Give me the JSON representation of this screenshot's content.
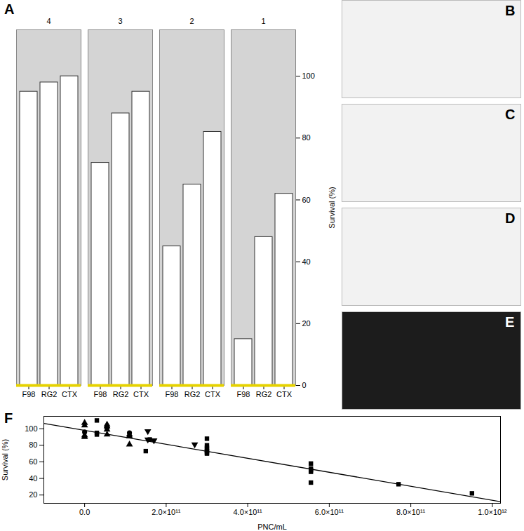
{
  "chart_data": [
    {
      "type": "bar",
      "title": "A",
      "categories": [
        "4",
        "3",
        "2",
        "1"
      ],
      "series": [
        {
          "name": "F98",
          "color": "#ffffff",
          "values": [
            95,
            72,
            45,
            15
          ]
        },
        {
          "name": "RG2",
          "color": "#ffffff",
          "values": [
            98,
            88,
            65,
            48
          ]
        },
        {
          "name": "CTX",
          "color": "#ffffff",
          "values": [
            100,
            95,
            82,
            62
          ]
        }
      ],
      "ylabel": "Survival (%)",
      "ylim": [
        0,
        115
      ],
      "yticks": [
        0,
        20,
        40,
        60,
        80,
        100
      ],
      "grid": true
    },
    {
      "type": "scatter",
      "title": "F",
      "xlabel": "PNC/mL",
      "ylabel": "Survival (%)",
      "xlim": [
        -100000000000.0,
        1020000000000.0
      ],
      "xticks": [
        {
          "value": 0,
          "label": "0.0"
        },
        {
          "value": 200000000000.0,
          "label": "2.0×10¹¹"
        },
        {
          "value": 400000000000.0,
          "label": "4.0×10¹¹"
        },
        {
          "value": 600000000000.0,
          "label": "6.0×10¹¹"
        },
        {
          "value": 800000000000.0,
          "label": "8.0×10¹¹"
        },
        {
          "value": 1000000000000.0,
          "label": "1.0×10¹²"
        }
      ],
      "ylim": [
        10,
        115
      ],
      "yticks": [
        20,
        40,
        60,
        80,
        100
      ],
      "series": [
        {
          "marker": "square",
          "color": "#000000",
          "x": [
            30000000000.0,
            30000000000.0,
            30000000000.0,
            150000000000.0,
            160000000000.0,
            300000000000.0,
            300000000000.0,
            300000000000.0,
            300000000000.0,
            300000000000.0,
            300000000000.0,
            300000000000.0,
            555000000000.0,
            555000000000.0,
            555000000000.0,
            555000000000.0,
            555000000000.0,
            770000000000.0,
            950000000000.0
          ],
          "values": [
            110,
            95,
            93,
            73,
            87,
            88,
            80,
            77,
            75,
            73,
            71,
            70,
            58,
            52,
            50,
            48,
            35,
            33,
            22
          ]
        },
        {
          "marker": "triangle-up",
          "color": "#000000",
          "x": [
            0,
            0,
            0,
            0,
            55000000000.0,
            55000000000.0,
            55000000000.0,
            55000000000.0,
            110000000000.0,
            110000000000.0,
            110000000000.0
          ],
          "values": [
            107,
            104,
            92,
            90,
            105,
            103,
            99,
            93,
            93,
            91,
            81
          ]
        },
        {
          "marker": "triangle-down",
          "color": "#000000",
          "x": [
            155000000000.0,
            155000000000.0,
            170000000000.0,
            170000000000.0,
            270000000000.0
          ],
          "values": [
            97,
            87,
            86,
            86,
            81
          ]
        },
        {
          "marker": "circle",
          "color": "#000000",
          "x": [
            0,
            55000000000.0,
            110000000000.0
          ],
          "values": [
            96,
            101,
            95
          ]
        },
        {
          "type": "line",
          "line_style": "solid",
          "color": "#000000",
          "x": [
            -100000000000.0,
            1020000000000.0
          ],
          "values": [
            106.5,
            12
          ]
        }
      ]
    }
  ],
  "images": [
    {
      "label": "B"
    },
    {
      "label": "C"
    },
    {
      "label": "D"
    },
    {
      "label": "E"
    }
  ]
}
